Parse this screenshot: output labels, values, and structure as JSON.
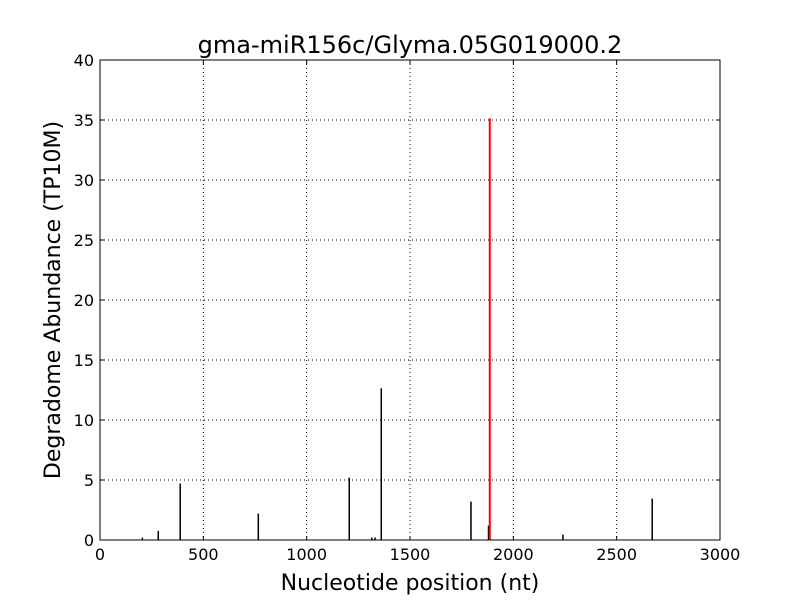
{
  "chart_data": {
    "type": "bar",
    "title": "gma-miR156c/Glyma.05G019000.2",
    "xlabel": "Nucleotide position (nt)",
    "ylabel": "Degradome Abundance (TP10M)",
    "xlim": [
      0,
      3000
    ],
    "ylim": [
      0,
      40
    ],
    "xticks": [
      0,
      500,
      1000,
      1500,
      2000,
      2500,
      3000
    ],
    "yticks": [
      0,
      5,
      10,
      15,
      20,
      25,
      30,
      35,
      40
    ],
    "grid": true,
    "series": [
      {
        "color": "#000000",
        "x": [
          205,
          282,
          388,
          766,
          1206,
          1315,
          1331,
          1361,
          1795,
          1880,
          2240,
          2672
        ],
        "values": [
          0.2,
          0.75,
          4.7,
          2.2,
          5.2,
          0.2,
          0.2,
          12.65,
          3.2,
          1.2,
          0.45,
          3.45
        ]
      },
      {
        "color": "#ff0000",
        "x": [
          1886
        ],
        "values": [
          35.15
        ]
      }
    ]
  }
}
